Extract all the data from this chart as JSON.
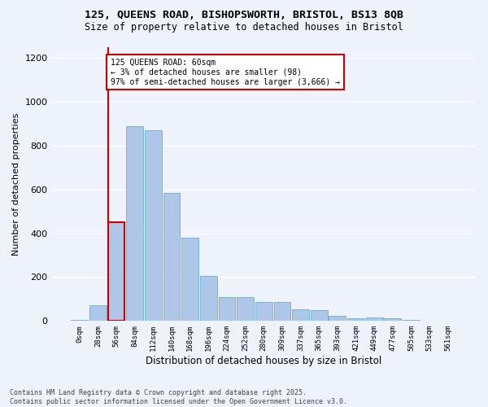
{
  "title_line1": "125, QUEENS ROAD, BISHOPSWORTH, BRISTOL, BS13 8QB",
  "title_line2": "Size of property relative to detached houses in Bristol",
  "xlabel": "Distribution of detached houses by size in Bristol",
  "ylabel": "Number of detached properties",
  "categories": [
    "0sqm",
    "28sqm",
    "56sqm",
    "84sqm",
    "112sqm",
    "140sqm",
    "168sqm",
    "196sqm",
    "224sqm",
    "252sqm",
    "280sqm",
    "309sqm",
    "337sqm",
    "365sqm",
    "393sqm",
    "421sqm",
    "449sqm",
    "477sqm",
    "505sqm",
    "533sqm",
    "561sqm"
  ],
  "values": [
    5,
    70,
    450,
    890,
    870,
    585,
    380,
    205,
    110,
    110,
    85,
    85,
    55,
    50,
    25,
    12,
    15,
    12,
    5,
    3,
    2
  ],
  "bar_color": "#aec6e8",
  "bar_edge_color": "#6aaed6",
  "highlight_bar_index": 2,
  "highlight_bar_edge_color": "#cc0000",
  "vline_color": "#cc0000",
  "annotation_text_line1": "125 QUEENS ROAD: 60sqm",
  "annotation_text_line2": "← 3% of detached houses are smaller (98)",
  "annotation_text_line3": "97% of semi-detached houses are larger (3,666) →",
  "annotation_box_facecolor": "#ffffff",
  "annotation_box_edgecolor": "#cc0000",
  "ylim": [
    0,
    1250
  ],
  "yticks": [
    0,
    200,
    400,
    600,
    800,
    1000,
    1200
  ],
  "background_color": "#eef2fa",
  "grid_color": "#ffffff",
  "footer_line1": "Contains HM Land Registry data © Crown copyright and database right 2025.",
  "footer_line2": "Contains public sector information licensed under the Open Government Licence v3.0."
}
